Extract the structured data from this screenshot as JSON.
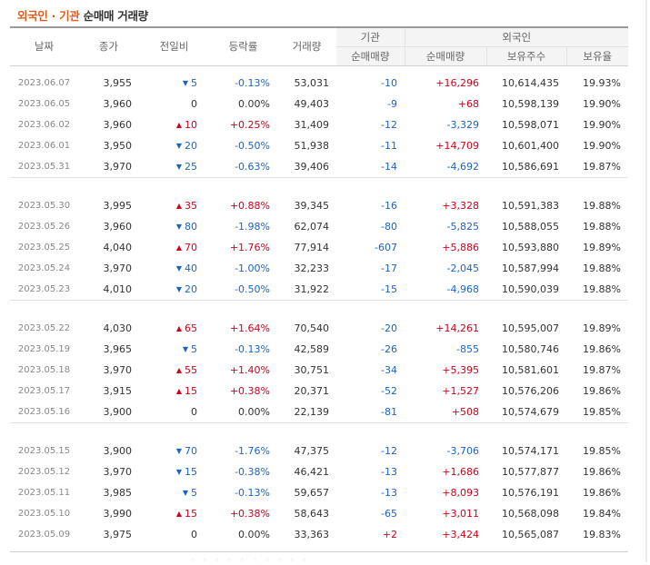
{
  "title": {
    "part1": "외국인 · 기관",
    "part2": "순매매 거래량"
  },
  "headers": {
    "date": "날짜",
    "close": "종가",
    "diff": "전일비",
    "rate": "등락률",
    "volume": "거래량",
    "inst": "기관",
    "foreign": "외국인",
    "inst_net": "순매매량",
    "foreign_net": "순매매량",
    "foreign_hold": "보유주수",
    "foreign_ratio": "보유율"
  },
  "colors": {
    "up": "#d0021b",
    "down": "#1c64c4",
    "title_accent": "#e25a1c"
  },
  "icons": {
    "up": "▲",
    "down": "▼"
  },
  "groups": [
    [
      {
        "date": "2023.06.07",
        "close": "3,955",
        "dir": "down",
        "diff": "5",
        "rate": "-0.13%",
        "volume": "53,031",
        "inst": "-10",
        "foreign": "+16,296",
        "hold": "10,614,435",
        "ratio": "19.93%"
      },
      {
        "date": "2023.06.05",
        "close": "3,960",
        "dir": "flat",
        "diff": "0",
        "rate": "0.00%",
        "volume": "49,403",
        "inst": "-9",
        "foreign": "+68",
        "hold": "10,598,139",
        "ratio": "19.90%"
      },
      {
        "date": "2023.06.02",
        "close": "3,960",
        "dir": "up",
        "diff": "10",
        "rate": "+0.25%",
        "volume": "31,409",
        "inst": "-12",
        "foreign": "-3,329",
        "hold": "10,598,071",
        "ratio": "19.90%"
      },
      {
        "date": "2023.06.01",
        "close": "3,950",
        "dir": "down",
        "diff": "20",
        "rate": "-0.50%",
        "volume": "51,938",
        "inst": "-11",
        "foreign": "+14,709",
        "hold": "10,601,400",
        "ratio": "19.90%"
      },
      {
        "date": "2023.05.31",
        "close": "3,970",
        "dir": "down",
        "diff": "25",
        "rate": "-0.63%",
        "volume": "39,406",
        "inst": "-14",
        "foreign": "-4,692",
        "hold": "10,586,691",
        "ratio": "19.87%"
      }
    ],
    [
      {
        "date": "2023.05.30",
        "close": "3,995",
        "dir": "up",
        "diff": "35",
        "rate": "+0.88%",
        "volume": "39,345",
        "inst": "-16",
        "foreign": "+3,328",
        "hold": "10,591,383",
        "ratio": "19.88%"
      },
      {
        "date": "2023.05.26",
        "close": "3,960",
        "dir": "down",
        "diff": "80",
        "rate": "-1.98%",
        "volume": "62,074",
        "inst": "-80",
        "foreign": "-5,825",
        "hold": "10,588,055",
        "ratio": "19.88%"
      },
      {
        "date": "2023.05.25",
        "close": "4,040",
        "dir": "up",
        "diff": "70",
        "rate": "+1.76%",
        "volume": "77,914",
        "inst": "-607",
        "foreign": "+5,886",
        "hold": "10,593,880",
        "ratio": "19.89%"
      },
      {
        "date": "2023.05.24",
        "close": "3,970",
        "dir": "down",
        "diff": "40",
        "rate": "-1.00%",
        "volume": "32,233",
        "inst": "-17",
        "foreign": "-2,045",
        "hold": "10,587,994",
        "ratio": "19.88%"
      },
      {
        "date": "2023.05.23",
        "close": "4,010",
        "dir": "down",
        "diff": "20",
        "rate": "-0.50%",
        "volume": "31,922",
        "inst": "-15",
        "foreign": "-4,968",
        "hold": "10,590,039",
        "ratio": "19.88%"
      }
    ],
    [
      {
        "date": "2023.05.22",
        "close": "4,030",
        "dir": "up",
        "diff": "65",
        "rate": "+1.64%",
        "volume": "70,540",
        "inst": "-20",
        "foreign": "+14,261",
        "hold": "10,595,007",
        "ratio": "19.89%"
      },
      {
        "date": "2023.05.19",
        "close": "3,965",
        "dir": "down",
        "diff": "5",
        "rate": "-0.13%",
        "volume": "42,589",
        "inst": "-26",
        "foreign": "-855",
        "hold": "10,580,746",
        "ratio": "19.86%"
      },
      {
        "date": "2023.05.18",
        "close": "3,970",
        "dir": "up",
        "diff": "55",
        "rate": "+1.40%",
        "volume": "30,751",
        "inst": "-34",
        "foreign": "+5,395",
        "hold": "10,581,601",
        "ratio": "19.87%"
      },
      {
        "date": "2023.05.17",
        "close": "3,915",
        "dir": "up",
        "diff": "15",
        "rate": "+0.38%",
        "volume": "20,371",
        "inst": "-52",
        "foreign": "+1,527",
        "hold": "10,576,206",
        "ratio": "19.86%"
      },
      {
        "date": "2023.05.16",
        "close": "3,900",
        "dir": "flat",
        "diff": "0",
        "rate": "0.00%",
        "volume": "22,139",
        "inst": "-81",
        "foreign": "+508",
        "hold": "10,574,679",
        "ratio": "19.85%"
      }
    ],
    [
      {
        "date": "2023.05.15",
        "close": "3,900",
        "dir": "down",
        "diff": "70",
        "rate": "-1.76%",
        "volume": "47,375",
        "inst": "-12",
        "foreign": "-3,706",
        "hold": "10,574,171",
        "ratio": "19.85%"
      },
      {
        "date": "2023.05.12",
        "close": "3,970",
        "dir": "down",
        "diff": "15",
        "rate": "-0.38%",
        "volume": "46,421",
        "inst": "-13",
        "foreign": "+1,686",
        "hold": "10,577,877",
        "ratio": "19.86%"
      },
      {
        "date": "2023.05.11",
        "close": "3,985",
        "dir": "down",
        "diff": "5",
        "rate": "-0.13%",
        "volume": "59,657",
        "inst": "-13",
        "foreign": "+8,093",
        "hold": "10,576,191",
        "ratio": "19.86%"
      },
      {
        "date": "2023.05.10",
        "close": "3,990",
        "dir": "up",
        "diff": "15",
        "rate": "+0.38%",
        "volume": "58,643",
        "inst": "-65",
        "foreign": "+3,011",
        "hold": "10,568,098",
        "ratio": "19.84%"
      },
      {
        "date": "2023.05.09",
        "close": "3,975",
        "dir": "flat",
        "diff": "0",
        "rate": "0.00%",
        "volume": "33,363",
        "inst": "+2",
        "foreign": "+3,424",
        "hold": "10,565,087",
        "ratio": "19.83%"
      }
    ]
  ]
}
